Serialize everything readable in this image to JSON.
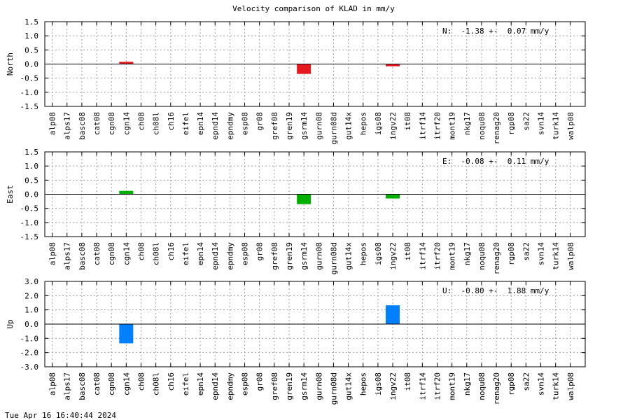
{
  "title": "Velocity comparison of KLAD in mm/y",
  "timestamp": "Tue Apr 16 16:40:44 2024",
  "chart_data": [
    {
      "type": "bar",
      "ylabel": "North",
      "annotation": "N:  -1.38 +-  0.07 mm/y",
      "ylim": [
        -1.5,
        1.5
      ],
      "yticks": [
        "1.5",
        "1.0",
        "0.5",
        "0.0",
        "-0.5",
        "-1.0",
        "-1.5"
      ],
      "grid": true,
      "color": "#e41a1c",
      "categories": [
        "alp08",
        "alps17",
        "basc08",
        "cat08",
        "cgn08",
        "cgn14",
        "ch08",
        "ch08l",
        "ch16",
        "eifel",
        "epn14",
        "epnd14",
        "epndmy",
        "esp08",
        "gr08",
        "gref08",
        "gren19",
        "gsrm14",
        "gurn08",
        "gurn08d",
        "gut14x",
        "hepos",
        "igs08",
        "ingv22",
        "it08",
        "itrf14",
        "itrf20",
        "mont19",
        "nkg17",
        "noqu08",
        "renag20",
        "rgp08",
        "sa22",
        "svn14",
        "turk14",
        "walp08"
      ],
      "values": [
        null,
        null,
        null,
        null,
        null,
        0.08,
        null,
        null,
        null,
        null,
        null,
        null,
        null,
        null,
        null,
        null,
        null,
        -0.35,
        null,
        null,
        null,
        null,
        null,
        -0.08,
        null,
        null,
        null,
        null,
        null,
        null,
        null,
        null,
        null,
        null,
        null,
        null
      ]
    },
    {
      "type": "bar",
      "ylabel": "East",
      "annotation": "E:  -0.08 +-  0.11 mm/y",
      "ylim": [
        -1.5,
        1.5
      ],
      "yticks": [
        "1.5",
        "1.0",
        "0.5",
        "0.0",
        "-0.5",
        "-1.0",
        "-1.5"
      ],
      "grid": true,
      "color": "#00b000",
      "categories": [
        "alp08",
        "alps17",
        "basc08",
        "cat08",
        "cgn08",
        "cgn14",
        "ch08",
        "ch08l",
        "ch16",
        "eifel",
        "epn14",
        "epnd14",
        "epndmy",
        "esp08",
        "gr08",
        "gref08",
        "gren19",
        "gsrm14",
        "gurn08",
        "gurn08d",
        "gut14x",
        "hepos",
        "igs08",
        "ingv22",
        "it08",
        "itrf14",
        "itrf20",
        "mont19",
        "nkg17",
        "noqu08",
        "renag20",
        "rgp08",
        "sa22",
        "svn14",
        "turk14",
        "walp08"
      ],
      "values": [
        null,
        null,
        null,
        null,
        null,
        0.12,
        null,
        null,
        null,
        null,
        null,
        null,
        null,
        null,
        null,
        null,
        null,
        -0.35,
        null,
        null,
        null,
        null,
        null,
        -0.15,
        null,
        null,
        null,
        null,
        null,
        null,
        null,
        null,
        null,
        null,
        null,
        null
      ]
    },
    {
      "type": "bar",
      "ylabel": "Up",
      "annotation": "U:  -0.80 +-  1.88 mm/y",
      "ylim": [
        -3.0,
        3.0
      ],
      "yticks": [
        "3.0",
        "2.0",
        "1.0",
        "0.0",
        "-1.0",
        "-2.0",
        "-3.0"
      ],
      "grid": true,
      "color": "#0080ff",
      "categories": [
        "alp08",
        "alps17",
        "basc08",
        "cat08",
        "cgn08",
        "cgn14",
        "ch08",
        "ch08l",
        "ch16",
        "eifel",
        "epn14",
        "epnd14",
        "epndmy",
        "esp08",
        "gr08",
        "gref08",
        "gren19",
        "gsrm14",
        "gurn08",
        "gurn08d",
        "gut14x",
        "hepos",
        "igs08",
        "ingv22",
        "it08",
        "itrf14",
        "itrf20",
        "mont19",
        "nkg17",
        "noqu08",
        "renag20",
        "rgp08",
        "sa22",
        "svn14",
        "turk14",
        "walp08"
      ],
      "values": [
        null,
        null,
        null,
        null,
        null,
        -1.35,
        null,
        null,
        null,
        null,
        null,
        null,
        null,
        null,
        null,
        null,
        null,
        null,
        null,
        null,
        null,
        null,
        null,
        1.32,
        null,
        null,
        null,
        null,
        null,
        null,
        null,
        null,
        null,
        null,
        null,
        null
      ]
    }
  ]
}
